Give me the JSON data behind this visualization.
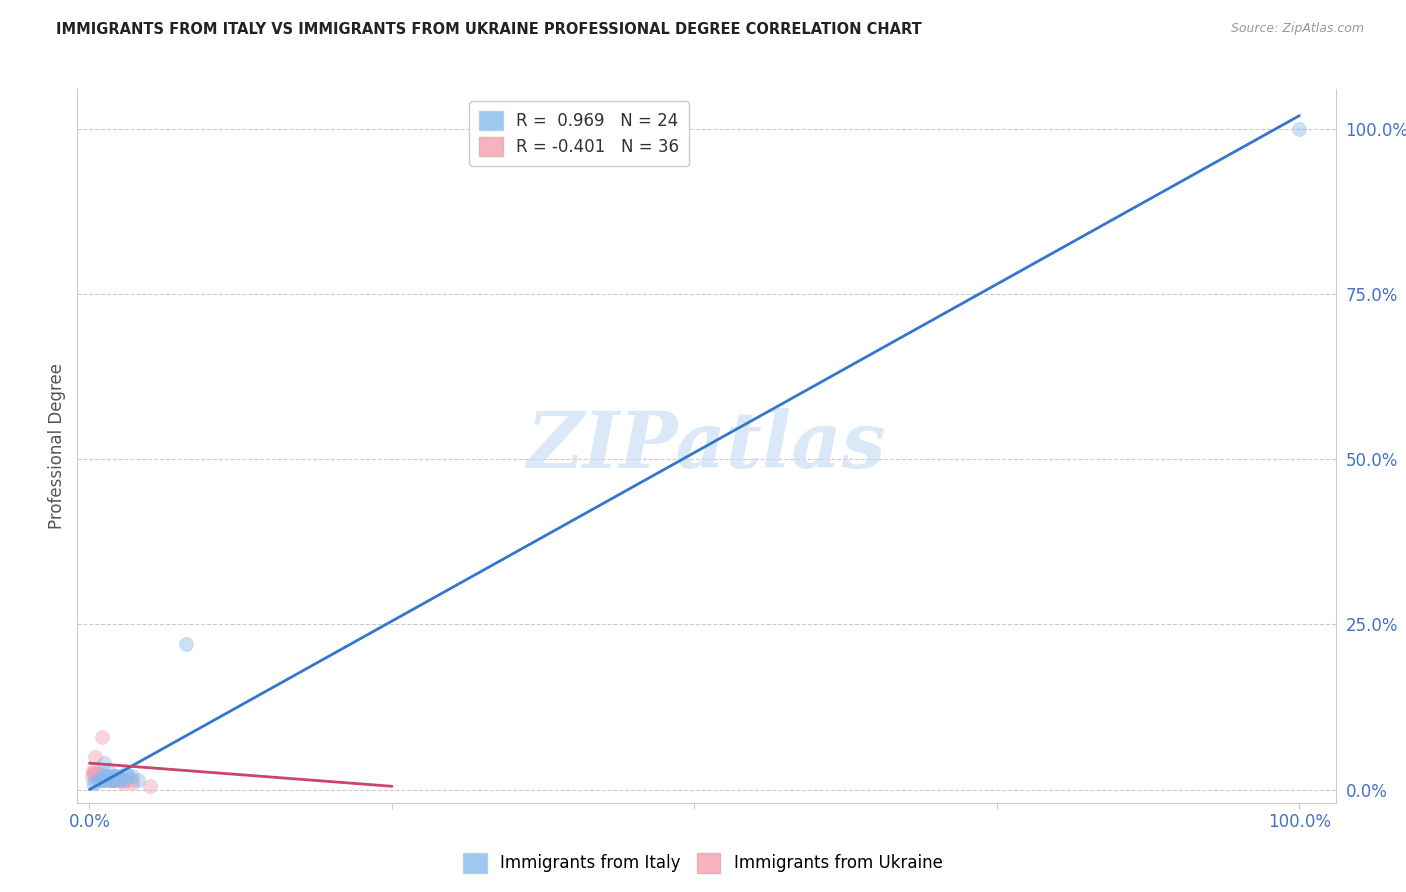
{
  "title": "IMMIGRANTS FROM ITALY VS IMMIGRANTS FROM UKRAINE PROFESSIONAL DEGREE CORRELATION CHART",
  "source": "Source: ZipAtlas.com",
  "ylabel": "Professional Degree",
  "ytick_labels": [
    "0.0%",
    "25.0%",
    "50.0%",
    "75.0%",
    "100.0%"
  ],
  "ytick_positions": [
    0,
    25,
    50,
    75,
    100
  ],
  "xtick_positions": [
    0,
    25,
    50,
    75,
    100
  ],
  "xtick_labels": [
    "0.0%",
    "",
    "",
    "",
    "100.0%"
  ],
  "watermark_text": "ZIPatlas",
  "italy_R": 0.969,
  "italy_N": 24,
  "ukraine_R": -0.401,
  "ukraine_N": 36,
  "italy_color": "#88bbee",
  "ukraine_color": "#f4a0b0",
  "italy_line_color": "#3377cc",
  "ukraine_line_color": "#cc4466",
  "background_color": "#ffffff",
  "grid_color": "#cccccc",
  "title_color": "#222222",
  "axis_label_color": "#4472c4",
  "italy_scatter_x": [
    1.0,
    1.5,
    2.0,
    2.5,
    3.0,
    3.5,
    4.0,
    1.2,
    1.8,
    2.2,
    2.8,
    3.2,
    0.5,
    0.8,
    1.0,
    1.5,
    2.0,
    2.5,
    0.3,
    0.7,
    1.3,
    2.0,
    8.0,
    100.0
  ],
  "italy_scatter_y": [
    1.5,
    2.0,
    1.5,
    2.0,
    2.5,
    2.0,
    1.5,
    4.0,
    1.5,
    2.0,
    1.5,
    2.0,
    1.0,
    1.5,
    2.0,
    3.0,
    1.5,
    1.5,
    1.0,
    1.5,
    1.5,
    2.0,
    22.0,
    100.0
  ],
  "ukraine_scatter_x": [
    0.5,
    0.8,
    1.0,
    1.2,
    1.5,
    1.8,
    2.0,
    2.2,
    2.5,
    3.0,
    3.5,
    0.3,
    0.6,
    0.9,
    1.1,
    1.4,
    1.7,
    2.0,
    2.3,
    2.8,
    0.2,
    0.4,
    0.7,
    1.0,
    1.3,
    1.6,
    1.9,
    3.5,
    0.5,
    0.8,
    1.2,
    1.8,
    2.5,
    5.0,
    0.3,
    1.0
  ],
  "ukraine_scatter_y": [
    2.0,
    2.5,
    2.0,
    1.5,
    2.0,
    1.5,
    2.0,
    2.0,
    1.5,
    1.5,
    1.5,
    3.0,
    2.5,
    2.0,
    2.0,
    2.0,
    1.5,
    1.5,
    1.5,
    1.0,
    2.0,
    2.5,
    2.0,
    2.0,
    1.5,
    1.5,
    1.5,
    1.0,
    5.0,
    2.0,
    2.0,
    1.5,
    1.5,
    0.5,
    2.5,
    8.0
  ],
  "italy_line_x": [
    0,
    100
  ],
  "italy_line_y": [
    0,
    102
  ],
  "ukraine_line_x": [
    0,
    25
  ],
  "ukraine_line_y": [
    4.0,
    0.5
  ],
  "marker_size": 100,
  "marker_alpha": 0.45,
  "marker_linewidth": 1.2
}
